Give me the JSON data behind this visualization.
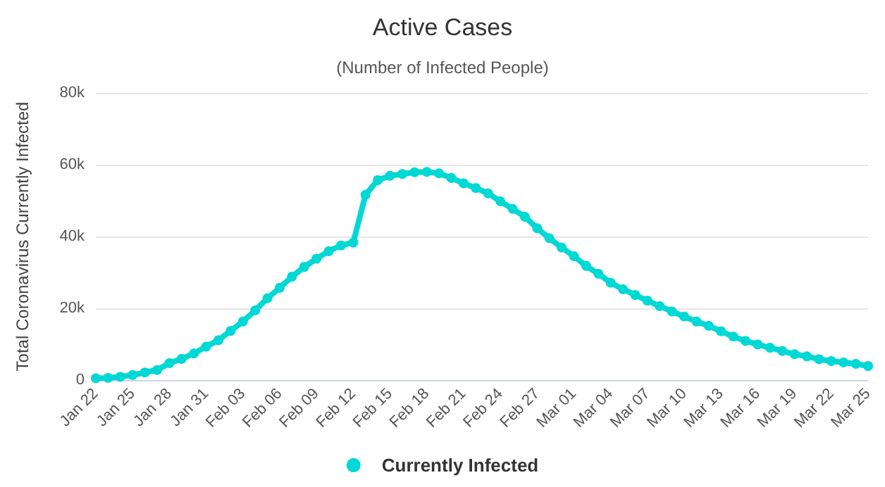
{
  "chart_data": {
    "type": "line",
    "title": "Active Cases",
    "subtitle": "(Number of Infected People)",
    "ylabel": "Total Coronavirus Currently Infected",
    "categories": [
      "Jan 22",
      null,
      null,
      "Jan 25",
      null,
      null,
      "Jan 28",
      null,
      null,
      "Jan 31",
      null,
      null,
      "Feb 03",
      null,
      null,
      "Feb 06",
      null,
      null,
      "Feb 09",
      null,
      null,
      "Feb 12",
      null,
      null,
      "Feb 15",
      null,
      null,
      "Feb 18",
      null,
      null,
      "Feb 21",
      null,
      null,
      "Feb 24",
      null,
      null,
      "Feb 27",
      null,
      null,
      "Mar 01",
      null,
      null,
      "Mar 04",
      null,
      null,
      "Mar 07",
      null,
      null,
      "Mar 10",
      null,
      null,
      "Mar 13",
      null,
      null,
      "Mar 16",
      null,
      null,
      "Mar 19",
      null,
      null,
      "Mar 22",
      null,
      null,
      "Mar 25"
    ],
    "series": [
      {
        "name": "Currently Infected",
        "color": "#00d8d6",
        "values": [
          500,
          600,
          900,
          1400,
          2100,
          2800,
          4700,
          5900,
          7400,
          9300,
          11100,
          13700,
          16300,
          19400,
          22800,
          25700,
          28800,
          31500,
          33800,
          35900,
          37500,
          38300,
          51600,
          55700,
          56900,
          57400,
          57900,
          58000,
          57600,
          56300,
          54800,
          53500,
          52000,
          49800,
          47700,
          45500,
          42300,
          39500,
          36900,
          34500,
          31800,
          29600,
          27100,
          25300,
          23700,
          22100,
          20600,
          19100,
          17700,
          16300,
          15100,
          13600,
          12100,
          10900,
          9900,
          9000,
          8100,
          7200,
          6600,
          5800,
          5300,
          4900,
          4500,
          3900
        ]
      }
    ],
    "ylim": [
      0,
      80000
    ],
    "yticks": [
      0,
      {
        "value": 20000,
        "label": "20k"
      },
      {
        "value": 40000,
        "label": "40k"
      },
      {
        "value": 60000,
        "label": "60k"
      },
      {
        "value": 80000,
        "label": "80k"
      }
    ],
    "grid": "y",
    "legend": "bottom",
    "marker": "circle",
    "line_style": "solid"
  }
}
